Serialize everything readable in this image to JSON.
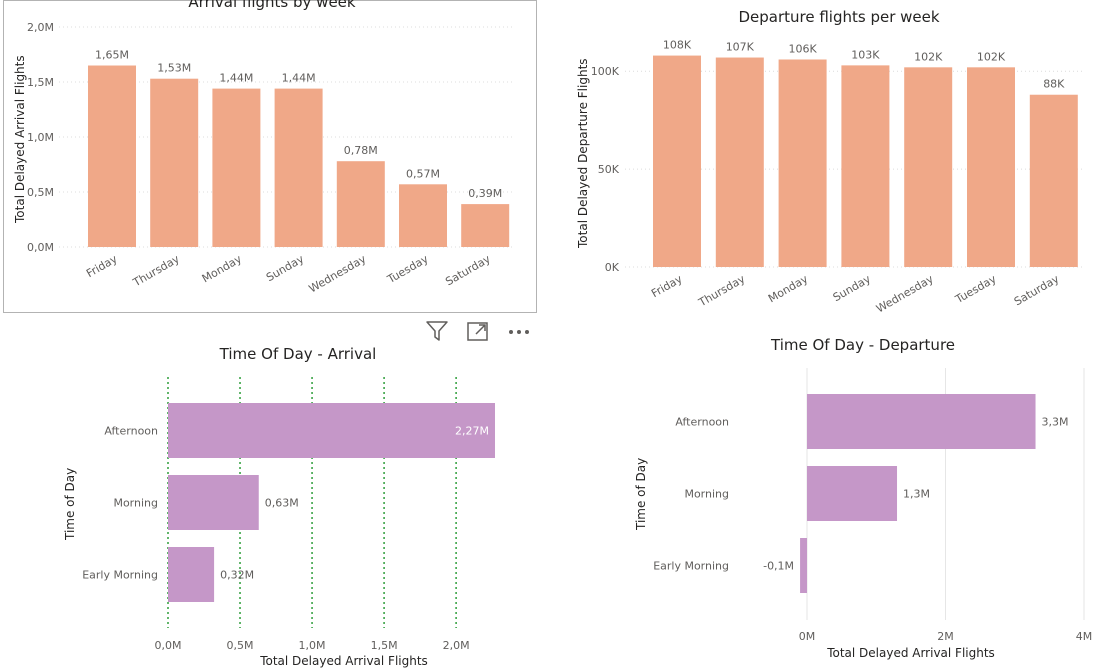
{
  "colors": {
    "arrival_bar": "#f0a888",
    "tod_bar": "#c597c8",
    "tick": "#605e5c",
    "label": "#252423",
    "grid_dotted": "#2e9e3a",
    "grid_solid": "#e6e6e6"
  },
  "header_icons": [
    "filter-icon",
    "focus-mode-icon",
    "more-options-icon"
  ],
  "chart_data": [
    {
      "type": "bar",
      "title": "Arrival flights by week",
      "ylabel": "Total Delayed Arrival Flights",
      "categories": [
        "Friday",
        "Thursday",
        "Monday",
        "Sunday",
        "Wednesday",
        "Tuesday",
        "Saturday"
      ],
      "values": [
        1.65,
        1.53,
        1.44,
        1.44,
        0.78,
        0.57,
        0.39
      ],
      "data_labels": [
        "1,65M",
        "1,53M",
        "1,44M",
        "1,44M",
        "0,78M",
        "0,57M",
        "0,39M"
      ],
      "yticks": [
        0,
        0.5,
        1.0,
        1.5,
        2.0
      ],
      "ytick_labels": [
        "0,0M",
        "0,5M",
        "1,0M",
        "1,5M",
        "2,0M"
      ],
      "ylim": [
        0,
        2.0
      ]
    },
    {
      "type": "bar",
      "title": "Departure flights per week",
      "ylabel": "Total Delayed Departure Flights",
      "categories": [
        "Friday",
        "Thursday",
        "Monday",
        "Sunday",
        "Wednesday",
        "Tuesday",
        "Saturday"
      ],
      "values": [
        108,
        107,
        106,
        103,
        102,
        102,
        88
      ],
      "data_labels": [
        "108K",
        "107K",
        "106K",
        "103K",
        "102K",
        "102K",
        "88K"
      ],
      "yticks": [
        0,
        50,
        100
      ],
      "ytick_labels": [
        "0K",
        "50K",
        "100K"
      ],
      "ylim": [
        0,
        118
      ]
    },
    {
      "type": "bar",
      "orientation": "horizontal",
      "title": "Time Of Day - Arrival",
      "xlabel": "Total Delayed Arrival Flights",
      "ylabel": "Time of Day",
      "categories": [
        "Afternoon",
        "Morning",
        "Early Morning"
      ],
      "values": [
        2.27,
        0.63,
        0.32
      ],
      "data_labels": [
        "2,27M",
        "0,63M",
        "0,32M"
      ],
      "xticks": [
        0,
        0.5,
        1.0,
        1.5,
        2.0
      ],
      "xtick_labels": [
        "0,0M",
        "0,5M",
        "1,0M",
        "1,5M",
        "2,0M"
      ],
      "xlim": [
        0,
        2.27
      ],
      "grid": "dotted"
    },
    {
      "type": "bar",
      "orientation": "horizontal",
      "title": "Time Of Day - Departure",
      "xlabel": "Total Delayed Arrival Flights",
      "ylabel": "Time of Day",
      "categories": [
        "Afternoon",
        "Morning",
        "Early Morning"
      ],
      "values": [
        3.3,
        1.3,
        -0.1
      ],
      "data_labels": [
        "3,3M",
        "1,3M",
        "-0,1M"
      ],
      "xticks": [
        0,
        2,
        4
      ],
      "xtick_labels": [
        "0M",
        "2M",
        "4M"
      ],
      "xlim": [
        0,
        4
      ],
      "grid": "solid"
    }
  ]
}
